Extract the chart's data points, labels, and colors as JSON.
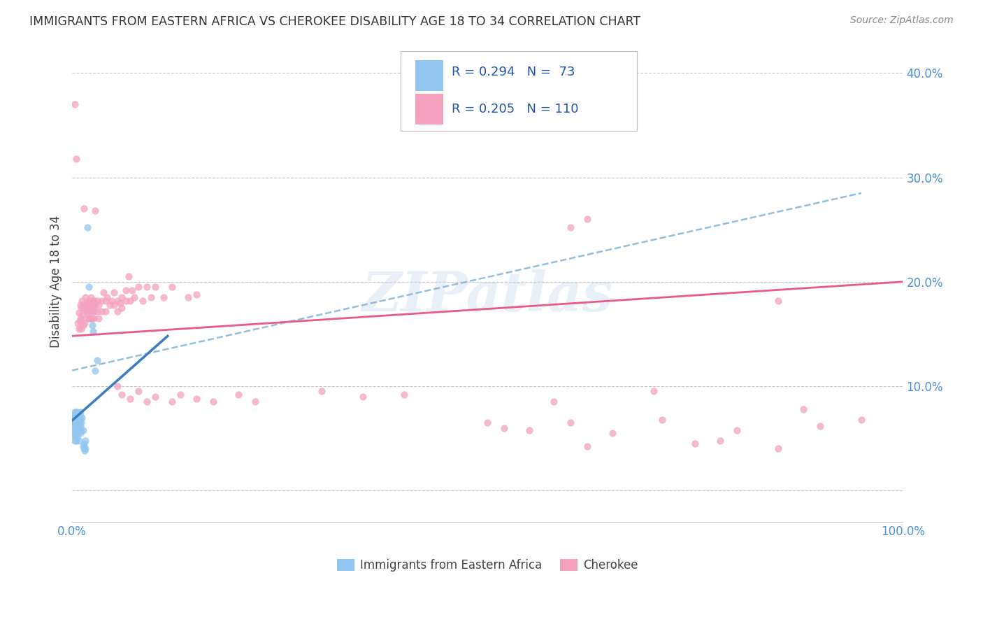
{
  "title": "IMMIGRANTS FROM EASTERN AFRICA VS CHEROKEE DISABILITY AGE 18 TO 34 CORRELATION CHART",
  "source": "Source: ZipAtlas.com",
  "ylabel": "Disability Age 18 to 34",
  "legend_label1": "Immigrants from Eastern Africa",
  "legend_label2": "Cherokee",
  "R1": 0.294,
  "N1": 73,
  "R2": 0.205,
  "N2": 110,
  "color_blue": "#92C5F0",
  "color_pink": "#F4A0BE",
  "color_blue_line": "#3A7CC4",
  "color_pink_line": "#E85A8A",
  "color_blue_dash": "#7AAED8",
  "xlim": [
    0.0,
    1.0
  ],
  "ylim": [
    -0.03,
    0.43
  ],
  "blue_scatter": [
    [
      0.0,
      0.07
    ],
    [
      0.001,
      0.068
    ],
    [
      0.001,
      0.065
    ],
    [
      0.001,
      0.062
    ],
    [
      0.001,
      0.072
    ],
    [
      0.001,
      0.06
    ],
    [
      0.002,
      0.058
    ],
    [
      0.002,
      0.065
    ],
    [
      0.002,
      0.055
    ],
    [
      0.002,
      0.058
    ],
    [
      0.002,
      0.068
    ],
    [
      0.002,
      0.052
    ],
    [
      0.003,
      0.075
    ],
    [
      0.003,
      0.062
    ],
    [
      0.003,
      0.058
    ],
    [
      0.003,
      0.06
    ],
    [
      0.003,
      0.065
    ],
    [
      0.003,
      0.048
    ],
    [
      0.003,
      0.07
    ],
    [
      0.004,
      0.055
    ],
    [
      0.004,
      0.062
    ],
    [
      0.004,
      0.068
    ],
    [
      0.004,
      0.072
    ],
    [
      0.004,
      0.058
    ],
    [
      0.004,
      0.062
    ],
    [
      0.004,
      0.052
    ],
    [
      0.005,
      0.068
    ],
    [
      0.005,
      0.075
    ],
    [
      0.005,
      0.058
    ],
    [
      0.005,
      0.062
    ],
    [
      0.005,
      0.07
    ],
    [
      0.005,
      0.055
    ],
    [
      0.005,
      0.048
    ],
    [
      0.006,
      0.058
    ],
    [
      0.006,
      0.065
    ],
    [
      0.006,
      0.06
    ],
    [
      0.006,
      0.072
    ],
    [
      0.006,
      0.068
    ],
    [
      0.006,
      0.075
    ],
    [
      0.006,
      0.052
    ],
    [
      0.007,
      0.062
    ],
    [
      0.007,
      0.058
    ],
    [
      0.007,
      0.068
    ],
    [
      0.007,
      0.072
    ],
    [
      0.007,
      0.055
    ],
    [
      0.008,
      0.065
    ],
    [
      0.008,
      0.07
    ],
    [
      0.008,
      0.058
    ],
    [
      0.008,
      0.048
    ],
    [
      0.009,
      0.06
    ],
    [
      0.009,
      0.058
    ],
    [
      0.009,
      0.072
    ],
    [
      0.01,
      0.062
    ],
    [
      0.01,
      0.055
    ],
    [
      0.01,
      0.068
    ],
    [
      0.01,
      0.075
    ],
    [
      0.011,
      0.058
    ],
    [
      0.011,
      0.065
    ],
    [
      0.012,
      0.07
    ],
    [
      0.013,
      0.058
    ],
    [
      0.013,
      0.042
    ],
    [
      0.014,
      0.045
    ],
    [
      0.014,
      0.04
    ],
    [
      0.015,
      0.038
    ],
    [
      0.016,
      0.048
    ],
    [
      0.016,
      0.04
    ],
    [
      0.018,
      0.252
    ],
    [
      0.02,
      0.195
    ],
    [
      0.022,
      0.165
    ],
    [
      0.024,
      0.158
    ],
    [
      0.025,
      0.152
    ],
    [
      0.028,
      0.115
    ],
    [
      0.03,
      0.125
    ]
  ],
  "pink_scatter": [
    [
      0.003,
      0.37
    ],
    [
      0.005,
      0.318
    ],
    [
      0.007,
      0.16
    ],
    [
      0.008,
      0.155
    ],
    [
      0.008,
      0.17
    ],
    [
      0.009,
      0.162
    ],
    [
      0.01,
      0.178
    ],
    [
      0.01,
      0.165
    ],
    [
      0.011,
      0.175
    ],
    [
      0.011,
      0.155
    ],
    [
      0.012,
      0.182
    ],
    [
      0.012,
      0.168
    ],
    [
      0.013,
      0.175
    ],
    [
      0.013,
      0.158
    ],
    [
      0.014,
      0.27
    ],
    [
      0.014,
      0.178
    ],
    [
      0.015,
      0.175
    ],
    [
      0.015,
      0.16
    ],
    [
      0.016,
      0.185
    ],
    [
      0.017,
      0.172
    ],
    [
      0.017,
      0.165
    ],
    [
      0.018,
      0.18
    ],
    [
      0.018,
      0.17
    ],
    [
      0.019,
      0.178
    ],
    [
      0.02,
      0.175
    ],
    [
      0.02,
      0.165
    ],
    [
      0.021,
      0.182
    ],
    [
      0.021,
      0.172
    ],
    [
      0.022,
      0.178
    ],
    [
      0.022,
      0.165
    ],
    [
      0.023,
      0.185
    ],
    [
      0.023,
      0.172
    ],
    [
      0.024,
      0.178
    ],
    [
      0.024,
      0.165
    ],
    [
      0.025,
      0.182
    ],
    [
      0.025,
      0.172
    ],
    [
      0.026,
      0.178
    ],
    [
      0.026,
      0.165
    ],
    [
      0.027,
      0.182
    ],
    [
      0.027,
      0.172
    ],
    [
      0.028,
      0.178
    ],
    [
      0.028,
      0.268
    ],
    [
      0.03,
      0.182
    ],
    [
      0.03,
      0.172
    ],
    [
      0.032,
      0.178
    ],
    [
      0.032,
      0.165
    ],
    [
      0.035,
      0.182
    ],
    [
      0.035,
      0.172
    ],
    [
      0.038,
      0.19
    ],
    [
      0.04,
      0.182
    ],
    [
      0.04,
      0.172
    ],
    [
      0.042,
      0.185
    ],
    [
      0.045,
      0.178
    ],
    [
      0.048,
      0.182
    ],
    [
      0.05,
      0.19
    ],
    [
      0.05,
      0.178
    ],
    [
      0.055,
      0.182
    ],
    [
      0.055,
      0.172
    ],
    [
      0.058,
      0.18
    ],
    [
      0.06,
      0.185
    ],
    [
      0.06,
      0.175
    ],
    [
      0.065,
      0.192
    ],
    [
      0.065,
      0.182
    ],
    [
      0.068,
      0.205
    ],
    [
      0.07,
      0.182
    ],
    [
      0.072,
      0.192
    ],
    [
      0.075,
      0.185
    ],
    [
      0.08,
      0.195
    ],
    [
      0.085,
      0.182
    ],
    [
      0.09,
      0.195
    ],
    [
      0.095,
      0.185
    ],
    [
      0.1,
      0.195
    ],
    [
      0.11,
      0.185
    ],
    [
      0.12,
      0.195
    ],
    [
      0.14,
      0.185
    ],
    [
      0.15,
      0.188
    ],
    [
      0.055,
      0.1
    ],
    [
      0.06,
      0.092
    ],
    [
      0.07,
      0.088
    ],
    [
      0.08,
      0.095
    ],
    [
      0.09,
      0.085
    ],
    [
      0.1,
      0.09
    ],
    [
      0.12,
      0.085
    ],
    [
      0.13,
      0.092
    ],
    [
      0.15,
      0.088
    ],
    [
      0.17,
      0.085
    ],
    [
      0.2,
      0.092
    ],
    [
      0.22,
      0.085
    ],
    [
      0.3,
      0.095
    ],
    [
      0.35,
      0.09
    ],
    [
      0.4,
      0.092
    ],
    [
      0.5,
      0.065
    ],
    [
      0.52,
      0.06
    ],
    [
      0.55,
      0.058
    ],
    [
      0.58,
      0.085
    ],
    [
      0.6,
      0.065
    ],
    [
      0.62,
      0.042
    ],
    [
      0.65,
      0.055
    ],
    [
      0.7,
      0.095
    ],
    [
      0.71,
      0.068
    ],
    [
      0.75,
      0.045
    ],
    [
      0.78,
      0.048
    ],
    [
      0.8,
      0.058
    ],
    [
      0.85,
      0.04
    ],
    [
      0.9,
      0.062
    ],
    [
      0.95,
      0.068
    ],
    [
      0.6,
      0.252
    ],
    [
      0.62,
      0.26
    ],
    [
      0.85,
      0.182
    ],
    [
      0.88,
      0.078
    ]
  ],
  "blue_line": {
    "x0": 0.0,
    "y0": 0.067,
    "x1": 0.115,
    "y1": 0.148
  },
  "pink_line": {
    "x0": 0.0,
    "y0": 0.148,
    "x1": 1.0,
    "y1": 0.2
  },
  "dash_line": {
    "x0": 0.0,
    "y0": 0.115,
    "x1": 0.95,
    "y1": 0.285
  }
}
